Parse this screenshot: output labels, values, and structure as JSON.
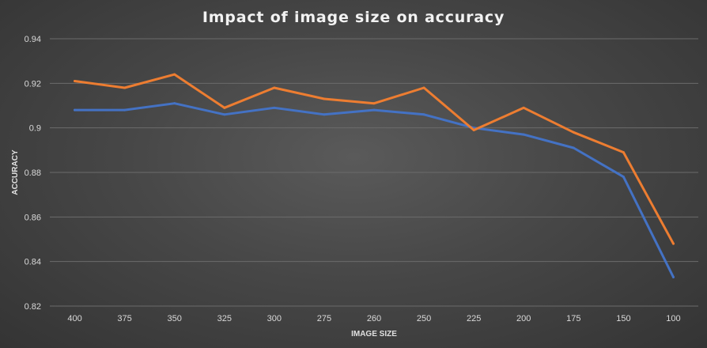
{
  "chart_data": {
    "type": "line",
    "title": "Impact of image size on accuracy",
    "xlabel": "IMAGE SIZE",
    "ylabel": "ACCURACY",
    "categories": [
      "400",
      "375",
      "350",
      "325",
      "300",
      "275",
      "260",
      "250",
      "225",
      "200",
      "175",
      "150",
      "100"
    ],
    "ylim": [
      0.82,
      0.94
    ],
    "yticks": [
      "0.82",
      "0.84",
      "0.86",
      "0.88",
      "0.9",
      "0.92",
      "0.94"
    ],
    "grid": true,
    "series": [
      {
        "color": "#4472c4",
        "values": [
          0.908,
          0.908,
          0.911,
          0.906,
          0.909,
          0.906,
          0.908,
          0.906,
          0.9,
          0.897,
          0.891,
          0.878,
          0.833
        ]
      },
      {
        "color": "#ed7d31",
        "values": [
          0.921,
          0.918,
          0.924,
          0.909,
          0.918,
          0.913,
          0.911,
          0.918,
          0.899,
          0.909,
          0.898,
          0.889,
          0.848
        ]
      }
    ]
  }
}
